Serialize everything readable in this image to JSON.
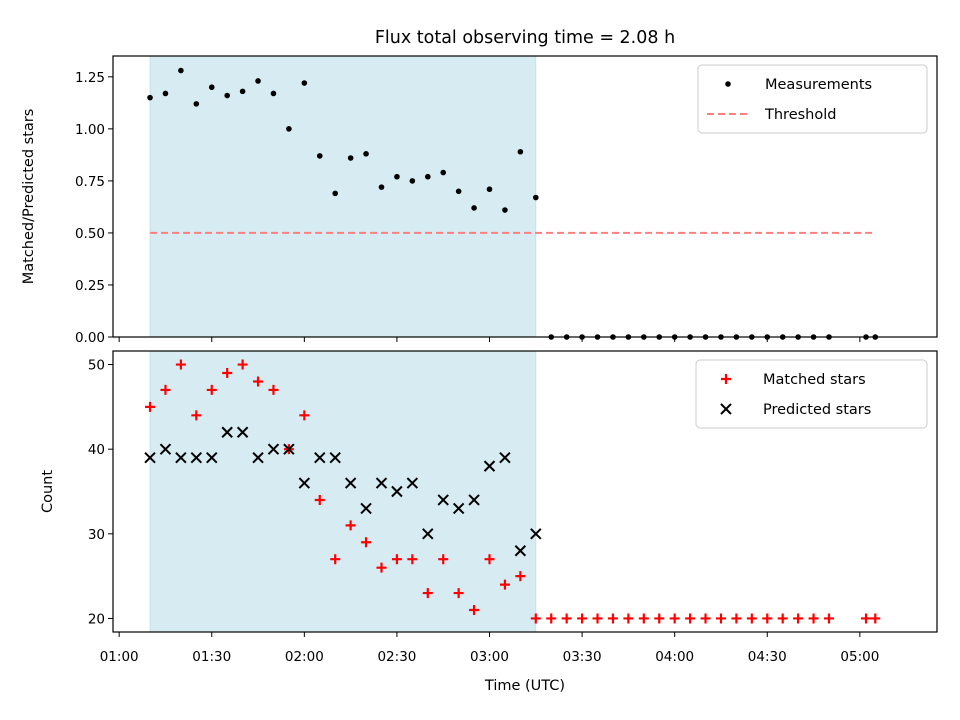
{
  "figure": {
    "title": "Flux total observing time = 2.08 h"
  },
  "chart_data": [
    {
      "type": "scatter",
      "xlabel": "",
      "ylabel": "Matched/Predicted stars",
      "ylim": [
        0,
        1.35
      ],
      "xlim": [
        "00:58",
        "05:25"
      ],
      "yticks": [
        "0.00",
        "0.25",
        "0.50",
        "0.75",
        "1.00",
        "1.25"
      ],
      "ytick_values": [
        0,
        0.25,
        0.5,
        0.75,
        1.0,
        1.25
      ],
      "xticks": [
        "01:00",
        "01:30",
        "02:00",
        "02:30",
        "03:00",
        "03:30",
        "04:00",
        "04:30",
        "05:00"
      ],
      "xtick_labels_visible": false,
      "shaded_span": {
        "start": "01:10",
        "end": "03:15",
        "color": "#add8e6"
      },
      "legend": {
        "placement": "upper right",
        "entries": [
          "Measurements",
          "Threshold"
        ]
      },
      "series": [
        {
          "name": "Measurements",
          "marker": "dot",
          "color": "#000000",
          "x": [
            "01:10",
            "01:15",
            "01:20",
            "01:25",
            "01:30",
            "01:35",
            "01:40",
            "01:45",
            "01:50",
            "01:55",
            "02:00",
            "02:05",
            "02:10",
            "02:15",
            "02:20",
            "02:25",
            "02:30",
            "02:35",
            "02:40",
            "02:45",
            "02:50",
            "02:55",
            "03:00",
            "03:05",
            "03:10",
            "03:15",
            "03:20",
            "03:25",
            "03:30",
            "03:35",
            "03:40",
            "03:45",
            "03:50",
            "03:55",
            "04:00",
            "04:05",
            "04:10",
            "04:15",
            "04:20",
            "04:25",
            "04:30",
            "04:35",
            "04:40",
            "04:45",
            "04:50",
            "05:02",
            "05:05"
          ],
          "y": [
            1.15,
            1.17,
            1.28,
            1.12,
            1.2,
            1.16,
            1.18,
            1.23,
            1.17,
            1.0,
            1.22,
            0.87,
            0.69,
            0.86,
            0.88,
            0.72,
            0.77,
            0.75,
            0.77,
            0.79,
            0.7,
            0.62,
            0.71,
            0.61,
            0.89,
            0.67,
            0,
            0,
            0,
            0,
            0,
            0,
            0,
            0,
            0,
            0,
            0,
            0,
            0,
            0,
            0,
            0,
            0,
            0,
            0,
            0,
            0
          ]
        },
        {
          "name": "Threshold",
          "style": "dashed",
          "color": "#ff7f7f",
          "x": [
            "01:10",
            "05:05"
          ],
          "y": [
            0.5,
            0.5
          ]
        }
      ]
    },
    {
      "type": "scatter",
      "xlabel": "Time (UTC)",
      "ylabel": "Count",
      "ylim": [
        18.4,
        51.6
      ],
      "xlim": [
        "00:58",
        "05:25"
      ],
      "yticks": [
        "20",
        "30",
        "40",
        "50"
      ],
      "ytick_values": [
        20,
        30,
        40,
        50
      ],
      "xticks": [
        "01:00",
        "01:30",
        "02:00",
        "02:30",
        "03:00",
        "03:30",
        "04:00",
        "04:30",
        "05:00"
      ],
      "xtick_labels_visible": true,
      "shaded_span": {
        "start": "01:10",
        "end": "03:15",
        "color": "#add8e6"
      },
      "legend": {
        "placement": "upper right",
        "entries": [
          "Matched stars",
          "Predicted stars"
        ]
      },
      "series": [
        {
          "name": "Matched stars",
          "marker": "plus",
          "color": "#ff0000",
          "x": [
            "01:10",
            "01:15",
            "01:20",
            "01:25",
            "01:30",
            "01:35",
            "01:40",
            "01:45",
            "01:50",
            "01:55",
            "02:00",
            "02:05",
            "02:10",
            "02:15",
            "02:20",
            "02:25",
            "02:30",
            "02:35",
            "02:40",
            "02:45",
            "02:50",
            "02:55",
            "03:00",
            "03:05",
            "03:10",
            "03:15",
            "03:20",
            "03:25",
            "03:30",
            "03:35",
            "03:40",
            "03:45",
            "03:50",
            "03:55",
            "04:00",
            "04:05",
            "04:10",
            "04:15",
            "04:20",
            "04:25",
            "04:30",
            "04:35",
            "04:40",
            "04:45",
            "04:50",
            "05:02",
            "05:05"
          ],
          "y": [
            45,
            47,
            50,
            44,
            47,
            49,
            50,
            48,
            47,
            40,
            44,
            34,
            27,
            31,
            29,
            26,
            27,
            27,
            23,
            27,
            23,
            21,
            27,
            24,
            25,
            20,
            20,
            20,
            20,
            20,
            20,
            20,
            20,
            20,
            20,
            20,
            20,
            20,
            20,
            20,
            20,
            20,
            20,
            20,
            20,
            20,
            20
          ]
        },
        {
          "name": "Predicted stars",
          "marker": "x",
          "color": "#000000",
          "x": [
            "01:10",
            "01:15",
            "01:20",
            "01:25",
            "01:30",
            "01:35",
            "01:40",
            "01:45",
            "01:50",
            "01:55",
            "02:00",
            "02:05",
            "02:10",
            "02:15",
            "02:20",
            "02:25",
            "02:30",
            "02:35",
            "02:40",
            "02:45",
            "02:50",
            "02:55",
            "03:00",
            "03:05",
            "03:10",
            "03:15"
          ],
          "y": [
            39,
            40,
            39,
            39,
            39,
            42,
            42,
            39,
            40,
            40,
            36,
            39,
            39,
            36,
            33,
            36,
            35,
            36,
            30,
            34,
            33,
            34,
            38,
            39,
            28,
            30
          ]
        }
      ]
    }
  ]
}
